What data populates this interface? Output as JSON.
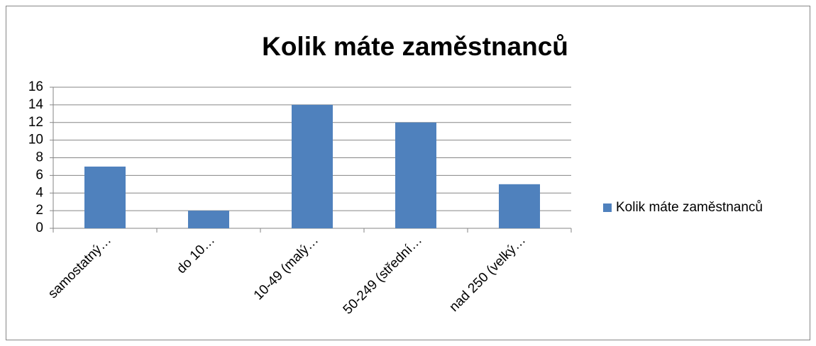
{
  "chart_data": {
    "type": "bar",
    "title": "Kolik máte zaměstnanců",
    "categories": [
      "samostatný…",
      "do 10…",
      "10-49 (malý…",
      "50-249 (střední…",
      "nad 250 (velký…"
    ],
    "series": [
      {
        "name": "Kolik máte zaměstnanců",
        "color": "#4f81bd",
        "values": [
          7,
          2,
          14,
          12,
          5
        ]
      }
    ],
    "ylim": [
      0,
      16
    ],
    "yticks": [
      0,
      2,
      4,
      6,
      8,
      10,
      12,
      14,
      16
    ],
    "grid": true,
    "legend": "right"
  }
}
